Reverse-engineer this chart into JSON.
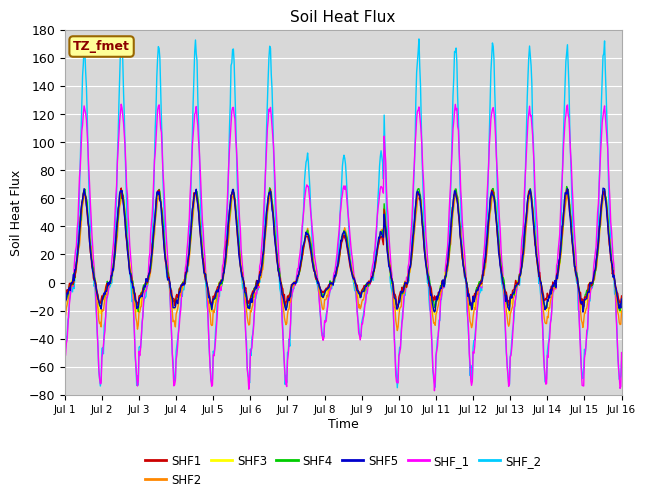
{
  "title": "Soil Heat Flux",
  "xlabel": "Time",
  "ylabel": "Soil Heat Flux",
  "ylim": [
    -80,
    180
  ],
  "xlim_days": 15,
  "series_colors": {
    "SHF1": "#cc0000",
    "SHF2": "#ff8800",
    "SHF3": "#ffff00",
    "SHF4": "#00cc00",
    "SHF5": "#0000cc",
    "SHF_1": "#ff00ff",
    "SHF_2": "#00ccff"
  },
  "series_order": [
    "SHF_2",
    "SHF_1",
    "SHF3",
    "SHF2",
    "SHF4",
    "SHF1",
    "SHF5"
  ],
  "legend_order": [
    "SHF1",
    "SHF2",
    "SHF3",
    "SHF4",
    "SHF5",
    "SHF_1",
    "SHF_2"
  ],
  "plot_bg_color": "#d8d8d8",
  "annotation_text": "TZ_fmet",
  "annotation_bg": "#ffff99",
  "annotation_border": "#996600",
  "tick_labels": [
    "Jul 1",
    "Jul 2",
    "Jul 3",
    "Jul 4",
    "Jul 5",
    "Jul 6",
    "Jul 7",
    "Jul 8",
    "Jul 9",
    "Jul 10",
    "Jul 11",
    "Jul 12",
    "Jul 13",
    "Jul 14",
    "Jul 15",
    "Jul 16"
  ]
}
